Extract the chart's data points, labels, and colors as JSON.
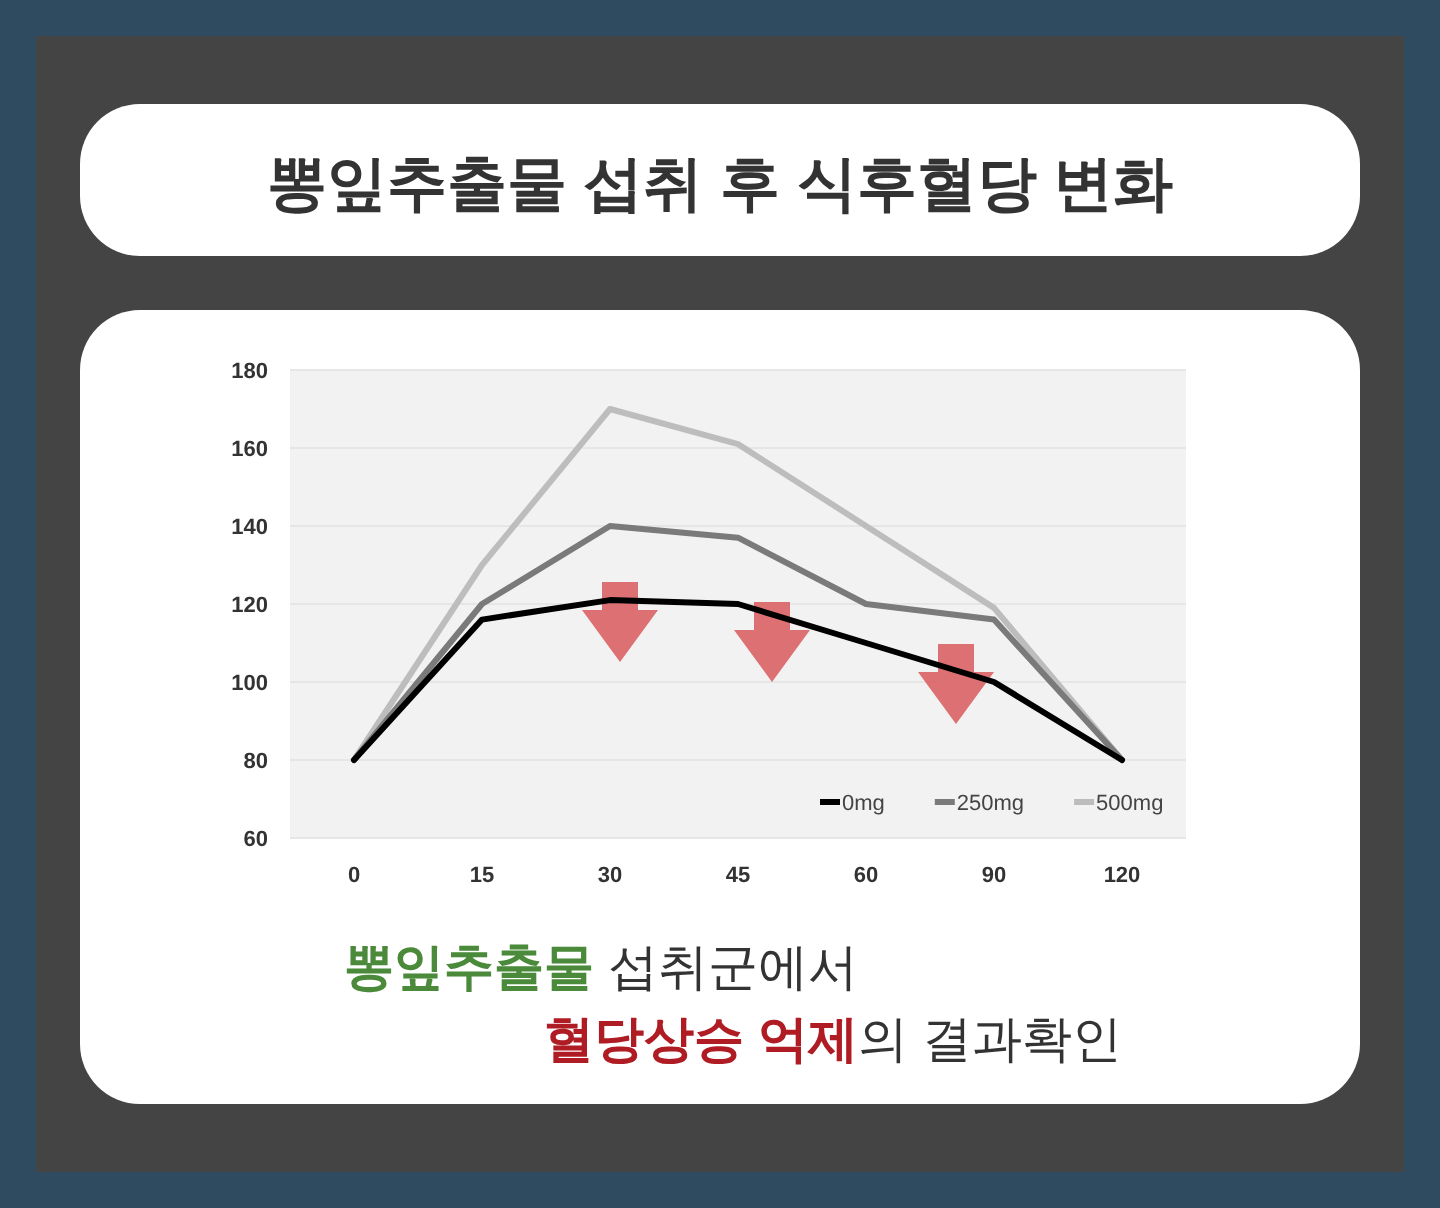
{
  "chart_data": {
    "type": "line",
    "title": "뽕잎추출물 섭취 후 식후혈당 변화",
    "categories": [
      "0",
      "15",
      "30",
      "45",
      "60",
      "90",
      "120"
    ],
    "series": [
      {
        "name": "0mg",
        "color": "#000000",
        "values": [
          80,
          116,
          121,
          120,
          110,
          100,
          80
        ]
      },
      {
        "name": "250mg",
        "color": "#7a7a7a",
        "values": [
          80,
          120,
          140,
          137,
          120,
          116,
          80
        ]
      },
      {
        "name": "500mg",
        "color": "#bdbdbd",
        "values": [
          80,
          130,
          170,
          161,
          140,
          119,
          80
        ]
      }
    ],
    "ylim": [
      60,
      180
    ],
    "yticks": [
      60,
      80,
      100,
      120,
      140,
      160,
      180
    ],
    "grid": "y",
    "legend": "bottom right",
    "annotations": [
      "뽕잎추출물 섭취군에서",
      "혈당상승 억제의 결과확인"
    ]
  }
}
